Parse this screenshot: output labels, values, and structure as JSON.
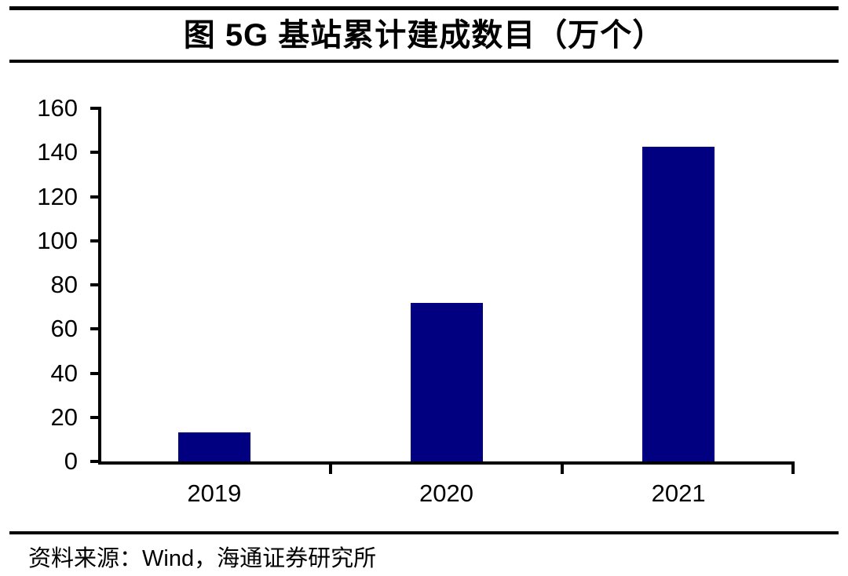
{
  "header": {
    "title": "图 5G 基站累计建成数目（万个）"
  },
  "footer": {
    "source": "资料来源：Wind，海通证券研究所"
  },
  "colors": {
    "bar": "#000080",
    "axis": "#000000",
    "text": "#000000",
    "background": "#ffffff"
  },
  "chart_data": {
    "type": "bar",
    "title": "图 5G 基站累计建成数目（万个）",
    "categories": [
      "2019",
      "2020",
      "2021"
    ],
    "values": [
      13,
      72,
      142.5
    ],
    "xlabel": "",
    "ylabel": "",
    "ylim": [
      0,
      160
    ],
    "yticks": [
      0,
      20,
      40,
      60,
      80,
      100,
      120,
      140,
      160
    ],
    "grid": false,
    "legend": false,
    "bar_color": "#000080"
  }
}
